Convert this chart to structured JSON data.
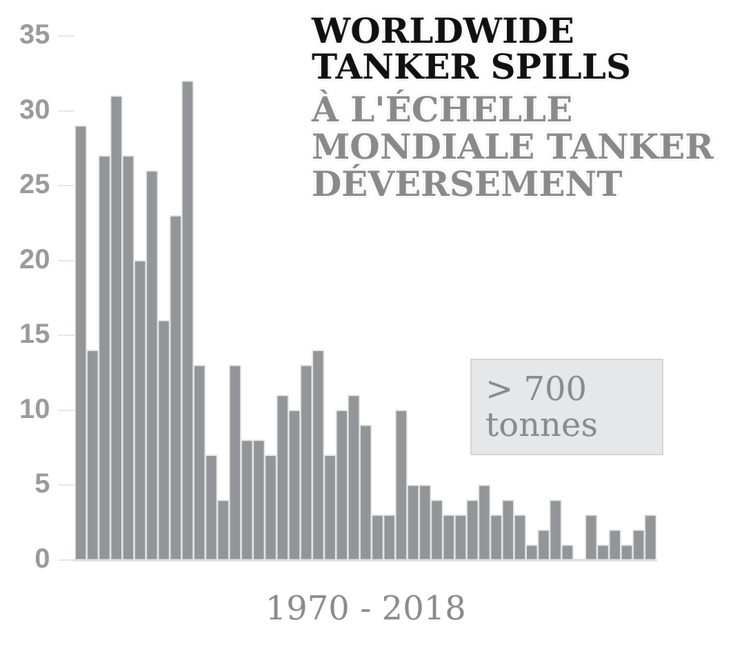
{
  "chart_data": {
    "type": "bar",
    "title": "WORLDWIDE TANKER SPILLS",
    "subtitle": "À L'ÉCHELLE MONDIALE TANKER DÉVERSEMENT",
    "xlabel": "1970 - 2018",
    "annotations": [
      "> 700 tonnes"
    ],
    "categories": [
      null,
      null,
      null,
      null,
      null,
      null,
      null,
      null,
      null,
      null,
      null,
      null,
      null,
      null,
      null,
      null,
      null,
      null,
      null,
      null,
      null,
      null,
      null,
      null,
      null,
      null,
      null,
      null,
      null,
      null,
      null,
      null,
      null,
      null,
      null,
      null,
      null,
      null,
      null,
      null,
      null,
      null,
      null,
      null,
      null,
      null,
      null,
      null,
      null
    ],
    "values": [
      29,
      14,
      27,
      31,
      27,
      20,
      26,
      16,
      23,
      32,
      13,
      7,
      4,
      13,
      8,
      8,
      7,
      11,
      10,
      13,
      14,
      7,
      10,
      11,
      9,
      3,
      3,
      10,
      5,
      5,
      4,
      3,
      3,
      4,
      5,
      3,
      4,
      3,
      1,
      2,
      4,
      1,
      0,
      3,
      1,
      2,
      1,
      2,
      3
    ],
    "color": "#939598",
    "ylim": [
      0,
      35
    ],
    "yticks": [
      0,
      5,
      10,
      15,
      20,
      25,
      30,
      35
    ],
    "grid": false,
    "legend": false
  }
}
